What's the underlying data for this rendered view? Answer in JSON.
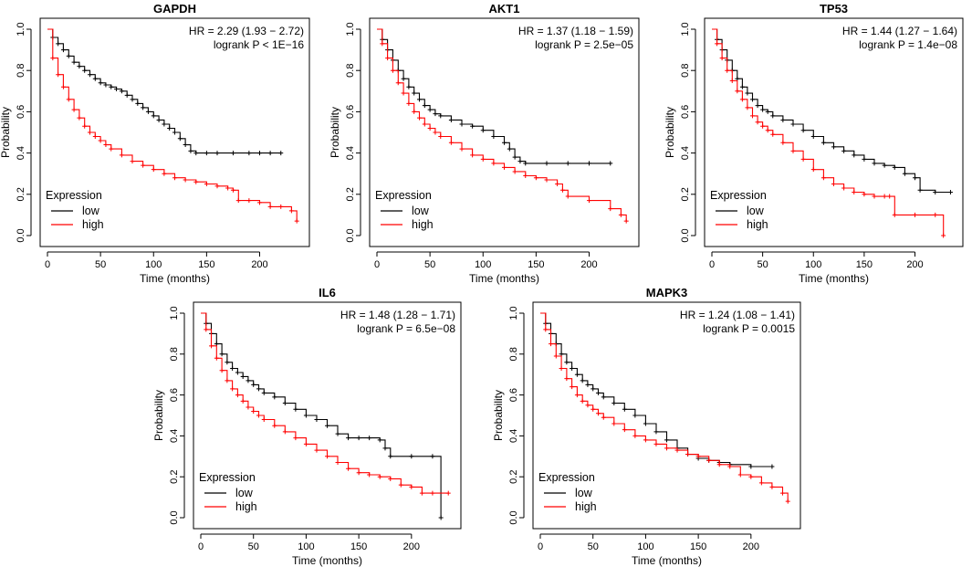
{
  "chart_data": [
    {
      "type": "line",
      "title": "GAPDH",
      "xlabel": "Time (months)",
      "ylabel": "Probability",
      "xlim": [
        0,
        240
      ],
      "ylim": [
        0,
        1
      ],
      "xticks": [
        "0",
        "50",
        "100",
        "150",
        "200"
      ],
      "yticks": [
        "0.0",
        "0.2",
        "0.4",
        "0.6",
        "0.8",
        "1.0"
      ],
      "xtick_values": [
        0,
        50,
        100,
        150,
        200
      ],
      "ytick_values": [
        0,
        0.2,
        0.4,
        0.6,
        0.8,
        1.0
      ],
      "stats": {
        "hr": "HR = 2.29 (1.93 − 2.72)",
        "logrank": "logrank P < 1E−16"
      },
      "legend": {
        "title": "Expression",
        "entries": [
          "low",
          "high"
        ]
      },
      "series": [
        {
          "name": "low",
          "color": "#000000",
          "x": [
            0,
            5,
            10,
            15,
            20,
            25,
            30,
            35,
            40,
            45,
            50,
            55,
            60,
            65,
            70,
            75,
            80,
            85,
            90,
            95,
            100,
            105,
            110,
            115,
            120,
            125,
            130,
            135,
            140,
            150,
            160,
            175,
            190,
            200,
            210,
            220
          ],
          "y": [
            1.0,
            0.96,
            0.93,
            0.9,
            0.87,
            0.84,
            0.82,
            0.8,
            0.78,
            0.76,
            0.74,
            0.73,
            0.72,
            0.71,
            0.7,
            0.68,
            0.66,
            0.64,
            0.62,
            0.6,
            0.58,
            0.56,
            0.54,
            0.52,
            0.5,
            0.47,
            0.44,
            0.41,
            0.4,
            0.4,
            0.4,
            0.4,
            0.4,
            0.4,
            0.4,
            0.4
          ]
        },
        {
          "name": "high",
          "color": "#ff0000",
          "x": [
            0,
            5,
            10,
            15,
            20,
            25,
            30,
            35,
            40,
            45,
            50,
            55,
            60,
            70,
            80,
            90,
            100,
            110,
            120,
            130,
            140,
            150,
            160,
            170,
            175,
            180,
            190,
            200,
            210,
            220,
            230,
            235
          ],
          "y": [
            1.0,
            0.86,
            0.78,
            0.72,
            0.66,
            0.61,
            0.57,
            0.53,
            0.5,
            0.48,
            0.46,
            0.44,
            0.42,
            0.39,
            0.36,
            0.34,
            0.32,
            0.3,
            0.28,
            0.27,
            0.26,
            0.25,
            0.24,
            0.23,
            0.22,
            0.17,
            0.17,
            0.16,
            0.14,
            0.14,
            0.12,
            0.07
          ]
        }
      ]
    },
    {
      "type": "line",
      "title": "AKT1",
      "xlabel": "Time (months)",
      "ylabel": "Probability",
      "xlim": [
        0,
        240
      ],
      "ylim": [
        0,
        1
      ],
      "xticks": [
        "0",
        "50",
        "100",
        "150",
        "200"
      ],
      "yticks": [
        "0.0",
        "0.2",
        "0.4",
        "0.6",
        "0.8",
        "1.0"
      ],
      "xtick_values": [
        0,
        50,
        100,
        150,
        200
      ],
      "ytick_values": [
        0,
        0.2,
        0.4,
        0.6,
        0.8,
        1.0
      ],
      "stats": {
        "hr": "HR = 1.37 (1.18 − 1.59)",
        "logrank": "logrank P = 2.5e−05"
      },
      "legend": {
        "title": "Expression",
        "entries": [
          "low",
          "high"
        ]
      },
      "series": [
        {
          "name": "low",
          "color": "#000000",
          "x": [
            0,
            5,
            10,
            15,
            20,
            25,
            30,
            35,
            40,
            45,
            50,
            55,
            60,
            70,
            80,
            90,
            100,
            110,
            120,
            125,
            130,
            135,
            140,
            160,
            180,
            200,
            220
          ],
          "y": [
            1.0,
            0.95,
            0.9,
            0.85,
            0.8,
            0.76,
            0.72,
            0.69,
            0.66,
            0.63,
            0.61,
            0.59,
            0.58,
            0.56,
            0.54,
            0.53,
            0.51,
            0.48,
            0.45,
            0.42,
            0.38,
            0.36,
            0.35,
            0.35,
            0.35,
            0.35,
            0.35
          ]
        },
        {
          "name": "high",
          "color": "#ff0000",
          "x": [
            0,
            5,
            10,
            15,
            20,
            25,
            30,
            35,
            40,
            45,
            50,
            55,
            60,
            70,
            80,
            90,
            100,
            110,
            120,
            130,
            140,
            150,
            160,
            170,
            175,
            180,
            200,
            220,
            230,
            235
          ],
          "y": [
            1.0,
            0.93,
            0.86,
            0.8,
            0.74,
            0.69,
            0.64,
            0.6,
            0.57,
            0.54,
            0.52,
            0.5,
            0.48,
            0.45,
            0.42,
            0.39,
            0.37,
            0.35,
            0.33,
            0.31,
            0.29,
            0.28,
            0.27,
            0.25,
            0.22,
            0.19,
            0.17,
            0.13,
            0.1,
            0.07
          ]
        }
      ]
    },
    {
      "type": "line",
      "title": "TP53",
      "xlabel": "Time (months)",
      "ylabel": "Probability",
      "xlim": [
        0,
        240
      ],
      "ylim": [
        0,
        1
      ],
      "xticks": [
        "0",
        "50",
        "100",
        "150",
        "200"
      ],
      "yticks": [
        "0.0",
        "0.2",
        "0.4",
        "0.6",
        "0.8",
        "1.0"
      ],
      "xtick_values": [
        0,
        50,
        100,
        150,
        200
      ],
      "ytick_values": [
        0,
        0.2,
        0.4,
        0.6,
        0.8,
        1.0
      ],
      "stats": {
        "hr": "HR = 1.44 (1.27 − 1.64)",
        "logrank": "logrank P = 1.4e−08"
      },
      "legend": {
        "title": "Expression",
        "entries": [
          "low",
          "high"
        ]
      },
      "series": [
        {
          "name": "low",
          "color": "#000000",
          "x": [
            0,
            5,
            10,
            15,
            20,
            25,
            30,
            35,
            40,
            45,
            50,
            55,
            60,
            70,
            80,
            90,
            100,
            110,
            120,
            130,
            140,
            150,
            160,
            170,
            180,
            190,
            200,
            205,
            220,
            235
          ],
          "y": [
            1.0,
            0.95,
            0.9,
            0.85,
            0.8,
            0.76,
            0.72,
            0.69,
            0.66,
            0.63,
            0.61,
            0.6,
            0.58,
            0.56,
            0.54,
            0.51,
            0.48,
            0.45,
            0.43,
            0.41,
            0.39,
            0.37,
            0.35,
            0.34,
            0.33,
            0.3,
            0.28,
            0.22,
            0.21,
            0.21
          ]
        },
        {
          "name": "high",
          "color": "#ff0000",
          "x": [
            0,
            5,
            10,
            15,
            20,
            25,
            30,
            35,
            40,
            45,
            50,
            55,
            60,
            70,
            80,
            90,
            100,
            110,
            120,
            130,
            140,
            150,
            160,
            170,
            175,
            180,
            200,
            220,
            228
          ],
          "y": [
            1.0,
            0.93,
            0.86,
            0.8,
            0.75,
            0.7,
            0.66,
            0.62,
            0.58,
            0.55,
            0.53,
            0.51,
            0.49,
            0.45,
            0.41,
            0.37,
            0.32,
            0.28,
            0.25,
            0.23,
            0.21,
            0.2,
            0.19,
            0.19,
            0.19,
            0.1,
            0.1,
            0.1,
            0.0
          ]
        }
      ]
    },
    {
      "type": "line",
      "title": "IL6",
      "xlabel": "Time (months)",
      "ylabel": "Probability",
      "xlim": [
        0,
        240
      ],
      "ylim": [
        0,
        1
      ],
      "xticks": [
        "0",
        "50",
        "100",
        "150",
        "200"
      ],
      "yticks": [
        "0.0",
        "0.2",
        "0.4",
        "0.6",
        "0.8",
        "1.0"
      ],
      "xtick_values": [
        0,
        50,
        100,
        150,
        200
      ],
      "ytick_values": [
        0,
        0.2,
        0.4,
        0.6,
        0.8,
        1.0
      ],
      "stats": {
        "hr": "HR = 1.48 (1.28 − 1.71)",
        "logrank": "logrank P = 6.5e−08"
      },
      "legend": {
        "title": "Expression",
        "entries": [
          "low",
          "high"
        ]
      },
      "series": [
        {
          "name": "low",
          "color": "#000000",
          "x": [
            0,
            5,
            10,
            15,
            20,
            25,
            30,
            35,
            40,
            45,
            50,
            55,
            60,
            70,
            80,
            90,
            100,
            110,
            120,
            130,
            140,
            150,
            160,
            170,
            175,
            180,
            200,
            220,
            228
          ],
          "y": [
            1.0,
            0.95,
            0.9,
            0.85,
            0.8,
            0.76,
            0.73,
            0.71,
            0.69,
            0.67,
            0.65,
            0.63,
            0.61,
            0.59,
            0.56,
            0.53,
            0.5,
            0.48,
            0.45,
            0.41,
            0.39,
            0.39,
            0.39,
            0.38,
            0.34,
            0.3,
            0.3,
            0.3,
            0.0
          ]
        },
        {
          "name": "high",
          "color": "#ff0000",
          "x": [
            0,
            5,
            10,
            15,
            20,
            25,
            30,
            35,
            40,
            45,
            50,
            55,
            60,
            70,
            80,
            90,
            100,
            110,
            120,
            130,
            140,
            150,
            160,
            170,
            180,
            190,
            200,
            210,
            220,
            235
          ],
          "y": [
            1.0,
            0.92,
            0.84,
            0.78,
            0.72,
            0.67,
            0.63,
            0.6,
            0.57,
            0.54,
            0.52,
            0.5,
            0.48,
            0.45,
            0.42,
            0.39,
            0.36,
            0.33,
            0.3,
            0.27,
            0.24,
            0.22,
            0.21,
            0.2,
            0.19,
            0.16,
            0.15,
            0.12,
            0.12,
            0.12
          ]
        }
      ]
    },
    {
      "type": "line",
      "title": "MAPK3",
      "xlabel": "Time (months)",
      "ylabel": "Probability",
      "xlim": [
        0,
        240
      ],
      "ylim": [
        0,
        1
      ],
      "xticks": [
        "0",
        "50",
        "100",
        "150",
        "200"
      ],
      "yticks": [
        "0.0",
        "0.2",
        "0.4",
        "0.6",
        "0.8",
        "1.0"
      ],
      "xtick_values": [
        0,
        50,
        100,
        150,
        200
      ],
      "ytick_values": [
        0,
        0.2,
        0.4,
        0.6,
        0.8,
        1.0
      ],
      "stats": {
        "hr": "HR = 1.24 (1.08 − 1.41)",
        "logrank": "logrank P = 0.0015"
      },
      "legend": {
        "title": "Expression",
        "entries": [
          "low",
          "high"
        ]
      },
      "series": [
        {
          "name": "low",
          "color": "#000000",
          "x": [
            0,
            5,
            10,
            15,
            20,
            25,
            30,
            35,
            40,
            45,
            50,
            55,
            60,
            70,
            80,
            90,
            100,
            110,
            120,
            130,
            140,
            150,
            160,
            170,
            180,
            200,
            220
          ],
          "y": [
            1.0,
            0.95,
            0.9,
            0.85,
            0.8,
            0.76,
            0.73,
            0.7,
            0.67,
            0.65,
            0.63,
            0.61,
            0.59,
            0.56,
            0.53,
            0.5,
            0.46,
            0.42,
            0.38,
            0.34,
            0.31,
            0.29,
            0.28,
            0.27,
            0.26,
            0.25,
            0.25
          ]
        },
        {
          "name": "high",
          "color": "#ff0000",
          "x": [
            0,
            5,
            10,
            15,
            20,
            25,
            30,
            35,
            40,
            45,
            50,
            55,
            60,
            70,
            80,
            90,
            100,
            110,
            120,
            130,
            140,
            150,
            160,
            170,
            180,
            190,
            200,
            210,
            220,
            230,
            235
          ],
          "y": [
            1.0,
            0.92,
            0.85,
            0.79,
            0.73,
            0.68,
            0.64,
            0.6,
            0.57,
            0.55,
            0.53,
            0.51,
            0.49,
            0.46,
            0.43,
            0.4,
            0.38,
            0.36,
            0.34,
            0.33,
            0.31,
            0.3,
            0.28,
            0.26,
            0.25,
            0.21,
            0.2,
            0.17,
            0.15,
            0.12,
            0.08
          ]
        }
      ]
    }
  ]
}
